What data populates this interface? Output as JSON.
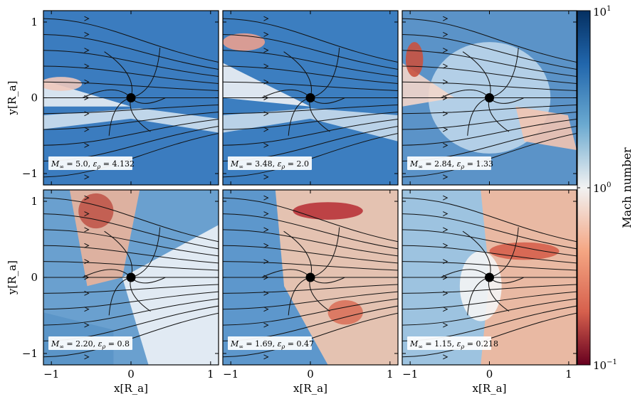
{
  "figure": {
    "colorbar": {
      "label": "Mach number",
      "ticks": [
        "10^1",
        "10^0",
        "10^-1"
      ],
      "scale": "log",
      "range": [
        0.1,
        10
      ],
      "colormap": "RdBu",
      "low_color": "#67001f",
      "mid_color": "#f7f7f7",
      "high_color": "#053061"
    },
    "marker_color": "#000000"
  },
  "chart_data": [
    {
      "type": "heatmap",
      "panel": 1,
      "mach": "5.0",
      "eps": "4.132",
      "xlabel": "",
      "ylabel": "y[R_a]",
      "xlim": [
        -1.1,
        1.1
      ],
      "ylim": [
        -1.15,
        1.15
      ],
      "xticks": [],
      "yticks": [
        "-1",
        "0",
        "1"
      ],
      "accretor_position": [
        0,
        0
      ],
      "streamlines": true
    },
    {
      "type": "heatmap",
      "panel": 2,
      "mach": "3.48",
      "eps": "2.0",
      "xlabel": "",
      "ylabel": "",
      "xlim": [
        -1.1,
        1.1
      ],
      "ylim": [
        -1.15,
        1.15
      ],
      "xticks": [],
      "yticks": [],
      "accretor_position": [
        0,
        0
      ],
      "streamlines": true
    },
    {
      "type": "heatmap",
      "panel": 3,
      "mach": "2.84",
      "eps": "1.33",
      "xlabel": "",
      "ylabel": "",
      "xlim": [
        -1.1,
        1.1
      ],
      "ylim": [
        -1.15,
        1.15
      ],
      "xticks": [],
      "yticks": [],
      "accretor_position": [
        0,
        0
      ],
      "streamlines": true
    },
    {
      "type": "heatmap",
      "panel": 4,
      "mach": "2.20",
      "eps": "0.8",
      "xlabel": "x[R_a]",
      "ylabel": "y[R_a]",
      "xlim": [
        -1.1,
        1.1
      ],
      "ylim": [
        -1.15,
        1.15
      ],
      "xticks": [
        "-1",
        "0",
        "1"
      ],
      "yticks": [
        "-1",
        "0",
        "1"
      ],
      "accretor_position": [
        0,
        0
      ],
      "streamlines": true
    },
    {
      "type": "heatmap",
      "panel": 5,
      "mach": "1.69",
      "eps": "0.47",
      "xlabel": "x[R_a]",
      "ylabel": "",
      "xlim": [
        -1.1,
        1.1
      ],
      "ylim": [
        -1.15,
        1.15
      ],
      "xticks": [
        "-1",
        "0",
        "1"
      ],
      "yticks": [],
      "accretor_position": [
        0,
        0
      ],
      "streamlines": true
    },
    {
      "type": "heatmap",
      "panel": 6,
      "mach": "1.15",
      "eps": "0.218",
      "xlabel": "x[R_a]",
      "ylabel": "",
      "xlim": [
        -1.1,
        1.1
      ],
      "ylim": [
        -1.15,
        1.15
      ],
      "xticks": [
        "-1",
        "0",
        "1"
      ],
      "yticks": [],
      "accretor_position": [
        0,
        0
      ],
      "streamlines": true
    }
  ]
}
